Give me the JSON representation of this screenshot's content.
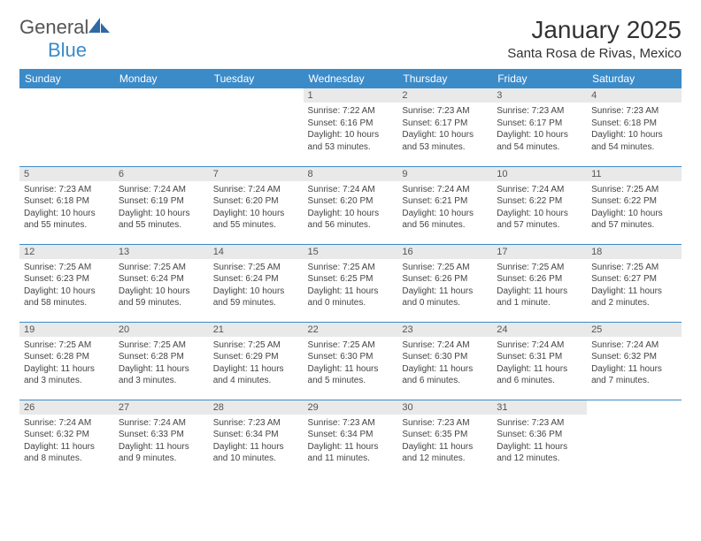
{
  "brand": {
    "name1": "General",
    "name2": "Blue",
    "logo_color": "#2d6aa3"
  },
  "title": "January 2025",
  "location": "Santa Rosa de Rivas, Mexico",
  "colors": {
    "header_bg": "#3b8bc9",
    "header_text": "#ffffff",
    "daynum_bg": "#e9e9e9",
    "daynum_text": "#555555",
    "row_border": "#3b8bc9",
    "text_color": "#444444"
  },
  "weekdays": [
    "Sunday",
    "Monday",
    "Tuesday",
    "Wednesday",
    "Thursday",
    "Friday",
    "Saturday"
  ],
  "weeks": [
    [
      {
        "empty": true
      },
      {
        "empty": true
      },
      {
        "empty": true
      },
      {
        "n": "1",
        "sr": "Sunrise: 7:22 AM",
        "ss": "Sunset: 6:16 PM",
        "d1": "Daylight: 10 hours",
        "d2": "and 53 minutes."
      },
      {
        "n": "2",
        "sr": "Sunrise: 7:23 AM",
        "ss": "Sunset: 6:17 PM",
        "d1": "Daylight: 10 hours",
        "d2": "and 53 minutes."
      },
      {
        "n": "3",
        "sr": "Sunrise: 7:23 AM",
        "ss": "Sunset: 6:17 PM",
        "d1": "Daylight: 10 hours",
        "d2": "and 54 minutes."
      },
      {
        "n": "4",
        "sr": "Sunrise: 7:23 AM",
        "ss": "Sunset: 6:18 PM",
        "d1": "Daylight: 10 hours",
        "d2": "and 54 minutes."
      }
    ],
    [
      {
        "n": "5",
        "sr": "Sunrise: 7:23 AM",
        "ss": "Sunset: 6:18 PM",
        "d1": "Daylight: 10 hours",
        "d2": "and 55 minutes."
      },
      {
        "n": "6",
        "sr": "Sunrise: 7:24 AM",
        "ss": "Sunset: 6:19 PM",
        "d1": "Daylight: 10 hours",
        "d2": "and 55 minutes."
      },
      {
        "n": "7",
        "sr": "Sunrise: 7:24 AM",
        "ss": "Sunset: 6:20 PM",
        "d1": "Daylight: 10 hours",
        "d2": "and 55 minutes."
      },
      {
        "n": "8",
        "sr": "Sunrise: 7:24 AM",
        "ss": "Sunset: 6:20 PM",
        "d1": "Daylight: 10 hours",
        "d2": "and 56 minutes."
      },
      {
        "n": "9",
        "sr": "Sunrise: 7:24 AM",
        "ss": "Sunset: 6:21 PM",
        "d1": "Daylight: 10 hours",
        "d2": "and 56 minutes."
      },
      {
        "n": "10",
        "sr": "Sunrise: 7:24 AM",
        "ss": "Sunset: 6:22 PM",
        "d1": "Daylight: 10 hours",
        "d2": "and 57 minutes."
      },
      {
        "n": "11",
        "sr": "Sunrise: 7:25 AM",
        "ss": "Sunset: 6:22 PM",
        "d1": "Daylight: 10 hours",
        "d2": "and 57 minutes."
      }
    ],
    [
      {
        "n": "12",
        "sr": "Sunrise: 7:25 AM",
        "ss": "Sunset: 6:23 PM",
        "d1": "Daylight: 10 hours",
        "d2": "and 58 minutes."
      },
      {
        "n": "13",
        "sr": "Sunrise: 7:25 AM",
        "ss": "Sunset: 6:24 PM",
        "d1": "Daylight: 10 hours",
        "d2": "and 59 minutes."
      },
      {
        "n": "14",
        "sr": "Sunrise: 7:25 AM",
        "ss": "Sunset: 6:24 PM",
        "d1": "Daylight: 10 hours",
        "d2": "and 59 minutes."
      },
      {
        "n": "15",
        "sr": "Sunrise: 7:25 AM",
        "ss": "Sunset: 6:25 PM",
        "d1": "Daylight: 11 hours",
        "d2": "and 0 minutes."
      },
      {
        "n": "16",
        "sr": "Sunrise: 7:25 AM",
        "ss": "Sunset: 6:26 PM",
        "d1": "Daylight: 11 hours",
        "d2": "and 0 minutes."
      },
      {
        "n": "17",
        "sr": "Sunrise: 7:25 AM",
        "ss": "Sunset: 6:26 PM",
        "d1": "Daylight: 11 hours",
        "d2": "and 1 minute."
      },
      {
        "n": "18",
        "sr": "Sunrise: 7:25 AM",
        "ss": "Sunset: 6:27 PM",
        "d1": "Daylight: 11 hours",
        "d2": "and 2 minutes."
      }
    ],
    [
      {
        "n": "19",
        "sr": "Sunrise: 7:25 AM",
        "ss": "Sunset: 6:28 PM",
        "d1": "Daylight: 11 hours",
        "d2": "and 3 minutes."
      },
      {
        "n": "20",
        "sr": "Sunrise: 7:25 AM",
        "ss": "Sunset: 6:28 PM",
        "d1": "Daylight: 11 hours",
        "d2": "and 3 minutes."
      },
      {
        "n": "21",
        "sr": "Sunrise: 7:25 AM",
        "ss": "Sunset: 6:29 PM",
        "d1": "Daylight: 11 hours",
        "d2": "and 4 minutes."
      },
      {
        "n": "22",
        "sr": "Sunrise: 7:25 AM",
        "ss": "Sunset: 6:30 PM",
        "d1": "Daylight: 11 hours",
        "d2": "and 5 minutes."
      },
      {
        "n": "23",
        "sr": "Sunrise: 7:24 AM",
        "ss": "Sunset: 6:30 PM",
        "d1": "Daylight: 11 hours",
        "d2": "and 6 minutes."
      },
      {
        "n": "24",
        "sr": "Sunrise: 7:24 AM",
        "ss": "Sunset: 6:31 PM",
        "d1": "Daylight: 11 hours",
        "d2": "and 6 minutes."
      },
      {
        "n": "25",
        "sr": "Sunrise: 7:24 AM",
        "ss": "Sunset: 6:32 PM",
        "d1": "Daylight: 11 hours",
        "d2": "and 7 minutes."
      }
    ],
    [
      {
        "n": "26",
        "sr": "Sunrise: 7:24 AM",
        "ss": "Sunset: 6:32 PM",
        "d1": "Daylight: 11 hours",
        "d2": "and 8 minutes."
      },
      {
        "n": "27",
        "sr": "Sunrise: 7:24 AM",
        "ss": "Sunset: 6:33 PM",
        "d1": "Daylight: 11 hours",
        "d2": "and 9 minutes."
      },
      {
        "n": "28",
        "sr": "Sunrise: 7:23 AM",
        "ss": "Sunset: 6:34 PM",
        "d1": "Daylight: 11 hours",
        "d2": "and 10 minutes."
      },
      {
        "n": "29",
        "sr": "Sunrise: 7:23 AM",
        "ss": "Sunset: 6:34 PM",
        "d1": "Daylight: 11 hours",
        "d2": "and 11 minutes."
      },
      {
        "n": "30",
        "sr": "Sunrise: 7:23 AM",
        "ss": "Sunset: 6:35 PM",
        "d1": "Daylight: 11 hours",
        "d2": "and 12 minutes."
      },
      {
        "n": "31",
        "sr": "Sunrise: 7:23 AM",
        "ss": "Sunset: 6:36 PM",
        "d1": "Daylight: 11 hours",
        "d2": "and 12 minutes."
      },
      {
        "empty": true
      }
    ]
  ]
}
